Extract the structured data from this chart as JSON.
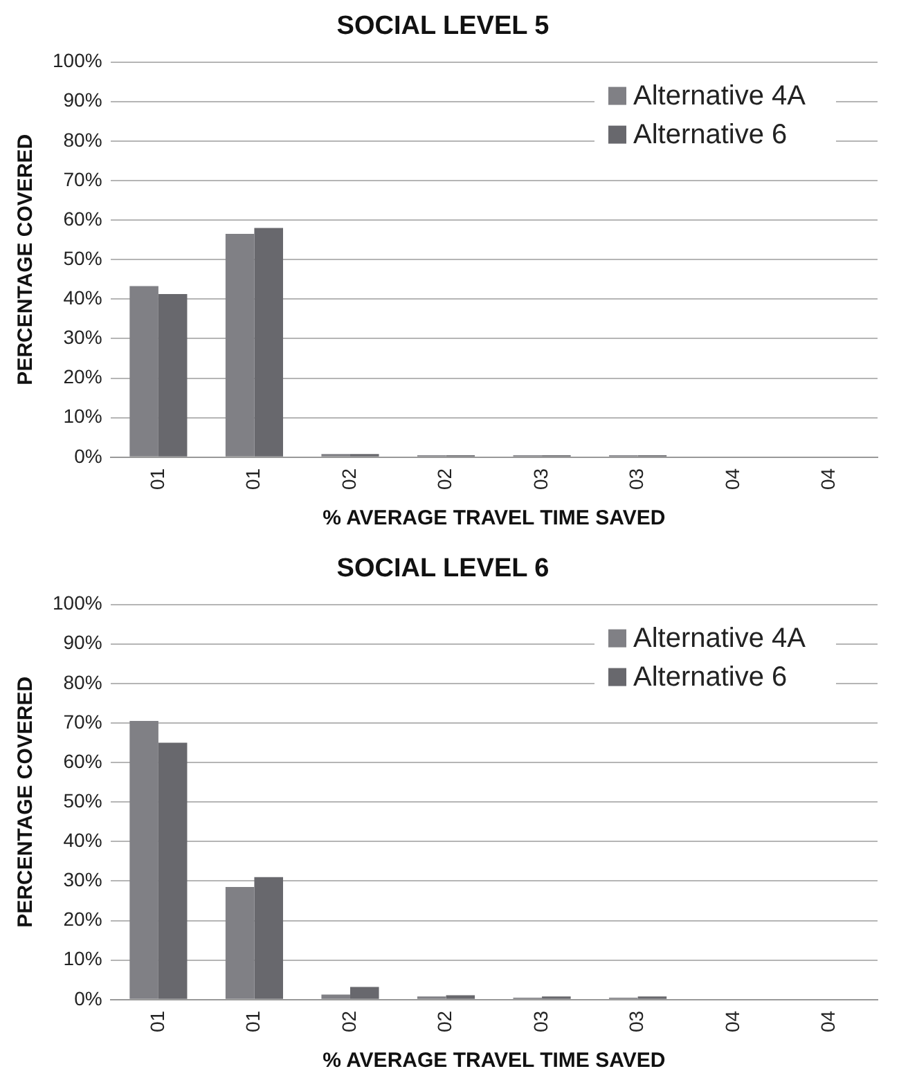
{
  "chart_data": [
    {
      "type": "bar",
      "title": "SOCIAL LEVEL 5",
      "xlabel": "% AVERAGE TRAVEL TIME SAVED",
      "ylabel": "PERCENTAGE COVERED",
      "categories": [
        "01",
        "01",
        "02",
        "02",
        "03",
        "03",
        "04",
        "04"
      ],
      "series": [
        {
          "name": "Alternative 4A",
          "color": "#808085",
          "values": [
            43.3,
            56.5,
            0.8,
            0.5,
            0.5,
            0.5,
            0,
            0
          ]
        },
        {
          "name": "Alternative 6",
          "color": "#68686d",
          "values": [
            41.3,
            58,
            0.8,
            0.5,
            0.5,
            0.5,
            0,
            0
          ]
        }
      ],
      "ylim": [
        0,
        100
      ],
      "yticks": [
        {
          "value": 0,
          "label": "0%"
        },
        {
          "value": 10,
          "label": "10%"
        },
        {
          "value": 20,
          "label": "20%"
        },
        {
          "value": 30,
          "label": "30%"
        },
        {
          "value": 40,
          "label": "40%"
        },
        {
          "value": 50,
          "label": "50%"
        },
        {
          "value": 60,
          "label": "60%"
        },
        {
          "value": 70,
          "label": "70%"
        },
        {
          "value": 80,
          "label": "80%"
        },
        {
          "value": 90,
          "label": "90%"
        },
        {
          "value": 100,
          "label": "100%"
        }
      ],
      "grid": "y",
      "legend": "top right"
    },
    {
      "type": "bar",
      "title": "SOCIAL LEVEL 6",
      "xlabel": "% AVERAGE TRAVEL TIME SAVED",
      "ylabel": "PERCENTAGE COVERED",
      "categories": [
        "01",
        "01",
        "02",
        "02",
        "03",
        "03",
        "04",
        "04"
      ],
      "series": [
        {
          "name": "Alternative 4A",
          "color": "#808085",
          "values": [
            70.5,
            28.5,
            1.3,
            0.8,
            0.5,
            0.5,
            0,
            0
          ]
        },
        {
          "name": "Alternative 6",
          "color": "#68686d",
          "values": [
            65,
            31,
            3.2,
            1.1,
            0.8,
            0.8,
            0,
            0
          ]
        }
      ],
      "ylim": [
        0,
        100
      ],
      "yticks": [
        {
          "value": 0,
          "label": "0%"
        },
        {
          "value": 10,
          "label": "10%"
        },
        {
          "value": 20,
          "label": "20%"
        },
        {
          "value": 30,
          "label": "30%"
        },
        {
          "value": 40,
          "label": "40%"
        },
        {
          "value": 50,
          "label": "50%"
        },
        {
          "value": 60,
          "label": "60%"
        },
        {
          "value": 70,
          "label": "70%"
        },
        {
          "value": 80,
          "label": "80%"
        },
        {
          "value": 90,
          "label": "90%"
        },
        {
          "value": 100,
          "label": "100%"
        }
      ],
      "grid": "y",
      "legend": "top right"
    }
  ]
}
